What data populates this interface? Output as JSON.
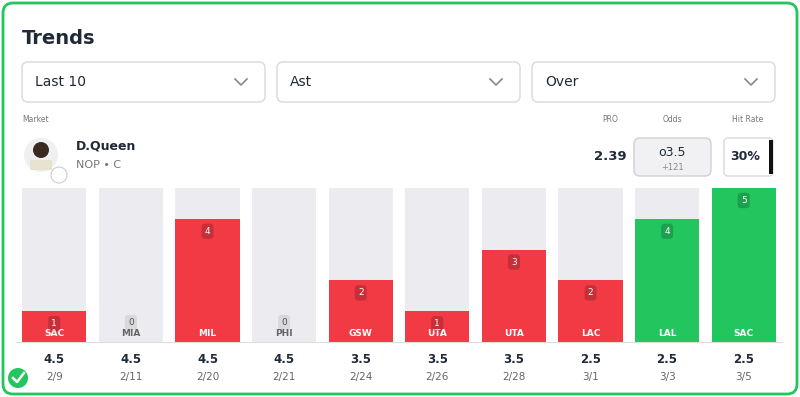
{
  "header": {
    "title": "Trends",
    "filters": [
      "Last 10",
      "Ast",
      "Over"
    ],
    "columns": {
      "market": "Market",
      "pro": "PRO",
      "odds": "Odds",
      "hit_rate": "Hit Rate"
    }
  },
  "player": {
    "name": "D.Queen",
    "team": "NOP • C",
    "pro": 2.39,
    "odds_line": "o3.5",
    "odds_price": "+121",
    "hit_rate": "30%"
  },
  "chart_data": {
    "type": "bar",
    "categories": [
      "SAC",
      "MIA",
      "MIL",
      "PHI",
      "GSW",
      "UTA",
      "UTA",
      "LAC",
      "LAL",
      "SAC"
    ],
    "values": [
      1,
      0,
      4,
      0,
      2,
      1,
      3,
      2,
      4,
      5
    ],
    "colors": [
      "#f23a45",
      "#f23a45",
      "#f23a45",
      "#f23a45",
      "#f23a45",
      "#f23a45",
      "#f23a45",
      "#f23a45",
      "#22c55e",
      "#22c55e"
    ],
    "ylim": [
      0,
      5
    ],
    "tick_labels": "x",
    "data_labels": true,
    "lines": [
      4.5,
      4.5,
      4.5,
      4.5,
      3.5,
      3.5,
      3.5,
      2.5,
      2.5,
      2.5
    ],
    "dates": [
      "2/9",
      "2/11",
      "2/20",
      "2/21",
      "2/24",
      "2/26",
      "2/28",
      "3/1",
      "3/3",
      "3/5"
    ]
  }
}
